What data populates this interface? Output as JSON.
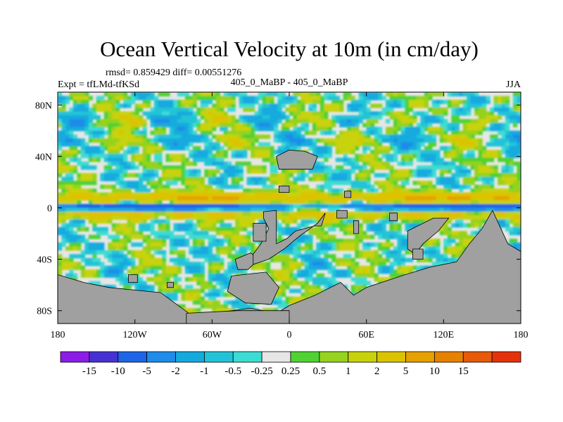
{
  "chart_data": {
    "type": "heatmap",
    "title": "Ocean Vertical Velocity at 10m (in cm/day)",
    "rmsd_label": "rmsd= 0.859429 diff= 0.00551276",
    "expt_label": "Expt = tfLMd-tfKSd",
    "center_label": "405_0_MaBP - 405_0_MaBP",
    "season_label": "JJA",
    "xlim": [
      -180,
      180
    ],
    "ylim": [
      -90,
      90
    ],
    "x_ticks": [
      {
        "value": -180,
        "label": "180"
      },
      {
        "value": -120,
        "label": "120W"
      },
      {
        "value": -60,
        "label": "60W"
      },
      {
        "value": 0,
        "label": "0"
      },
      {
        "value": 60,
        "label": "60E"
      },
      {
        "value": 120,
        "label": "120E"
      },
      {
        "value": 180,
        "label": "180"
      }
    ],
    "y_ticks": [
      {
        "value": 80,
        "label": "80N"
      },
      {
        "value": 40,
        "label": "40N"
      },
      {
        "value": 0,
        "label": "0"
      },
      {
        "value": -40,
        "label": "40S"
      },
      {
        "value": -80,
        "label": "80S"
      }
    ],
    "colorbar": {
      "colors": [
        "#8c1ce6",
        "#4632d2",
        "#1e64e6",
        "#1e8ce8",
        "#14aade",
        "#23c3d7",
        "#3cdcd2",
        "#e6e6e6",
        "#50d232",
        "#96d21e",
        "#c8d20a",
        "#dcc300",
        "#e6a000",
        "#e68200",
        "#e65a0a",
        "#e6320a"
      ],
      "labels": [
        "-15",
        "-10",
        "-5",
        "-2",
        "-1",
        "-0.5",
        "-0.25",
        "0.25",
        "0.5",
        "1",
        "2",
        "5",
        "10",
        "15"
      ]
    },
    "land": [
      [
        [
          -180,
          -52
        ],
        [
          -160,
          -58
        ],
        [
          -140,
          -62
        ],
        [
          -100,
          -66
        ],
        [
          -78,
          -82
        ],
        [
          -60,
          -82
        ],
        [
          -30,
          -78
        ],
        [
          -10,
          -82
        ],
        [
          0,
          -76
        ],
        [
          20,
          -68
        ],
        [
          40,
          -58
        ],
        [
          50,
          -68
        ],
        [
          60,
          -62
        ],
        [
          90,
          -52
        ],
        [
          110,
          -46
        ],
        [
          130,
          -42
        ],
        [
          140,
          -28
        ],
        [
          150,
          -16
        ],
        [
          158,
          -2
        ],
        [
          170,
          -28
        ],
        [
          180,
          -34
        ],
        [
          180,
          -90
        ],
        [
          -180,
          -90
        ]
      ],
      [
        [
          -80,
          -82
        ],
        [
          -80,
          -90
        ],
        [
          0,
          -90
        ],
        [
          0,
          -80
        ],
        [
          -40,
          -80
        ]
      ],
      [
        [
          -45,
          -53
        ],
        [
          -18,
          -50
        ],
        [
          -8,
          -62
        ],
        [
          -14,
          -75
        ],
        [
          -34,
          -74
        ],
        [
          -48,
          -65
        ]
      ],
      [
        [
          -42,
          -40
        ],
        [
          -40,
          -48
        ],
        [
          -32,
          -48
        ],
        [
          -24,
          -40
        ],
        [
          -30,
          -35
        ]
      ],
      [
        [
          -10,
          -28
        ],
        [
          -2,
          -24
        ],
        [
          5,
          -18
        ],
        [
          20,
          -14
        ],
        [
          25,
          -14
        ],
        [
          28,
          -4
        ],
        [
          22,
          -12
        ],
        [
          8,
          -22
        ],
        [
          -4,
          -32
        ],
        [
          -16,
          -40
        ],
        [
          -28,
          -44
        ],
        [
          -28,
          -36
        ],
        [
          -22,
          -28
        ],
        [
          -16,
          -16
        ],
        [
          -20,
          -8
        ],
        [
          -20,
          -3
        ],
        [
          -10,
          -2
        ]
      ],
      [
        [
          -28,
          -12
        ],
        [
          -18,
          -12
        ],
        [
          -18,
          -26
        ],
        [
          -28,
          -26
        ]
      ],
      [
        [
          -10,
          40
        ],
        [
          -8,
          30
        ],
        [
          18,
          30
        ],
        [
          22,
          40
        ],
        [
          12,
          44
        ],
        [
          0,
          45
        ]
      ],
      [
        [
          -8,
          17
        ],
        [
          0,
          17
        ],
        [
          0,
          12
        ],
        [
          -8,
          12
        ]
      ],
      [
        [
          43,
          13
        ],
        [
          48,
          13
        ],
        [
          48,
          8
        ],
        [
          43,
          8
        ]
      ],
      [
        [
          50,
          -10
        ],
        [
          54,
          -10
        ],
        [
          54,
          -20
        ],
        [
          50,
          -20
        ]
      ],
      [
        [
          37,
          -2
        ],
        [
          45,
          -2
        ],
        [
          45,
          -8
        ],
        [
          37,
          -8
        ]
      ],
      [
        [
          -125,
          -52
        ],
        [
          -118,
          -52
        ],
        [
          -118,
          -58
        ],
        [
          -125,
          -58
        ]
      ],
      [
        [
          -95,
          -58
        ],
        [
          -90,
          -58
        ],
        [
          -90,
          -62
        ],
        [
          -95,
          -62
        ]
      ],
      [
        [
          92,
          -18
        ],
        [
          112,
          -8
        ],
        [
          124,
          -8
        ],
        [
          116,
          -18
        ],
        [
          104,
          -28
        ],
        [
          98,
          -36
        ],
        [
          92,
          -32
        ]
      ],
      [
        [
          96,
          -32
        ],
        [
          104,
          -32
        ],
        [
          104,
          -40
        ],
        [
          96,
          -40
        ]
      ],
      [
        [
          78,
          -4
        ],
        [
          84,
          -4
        ],
        [
          84,
          -10
        ],
        [
          78,
          -10
        ]
      ]
    ]
  }
}
